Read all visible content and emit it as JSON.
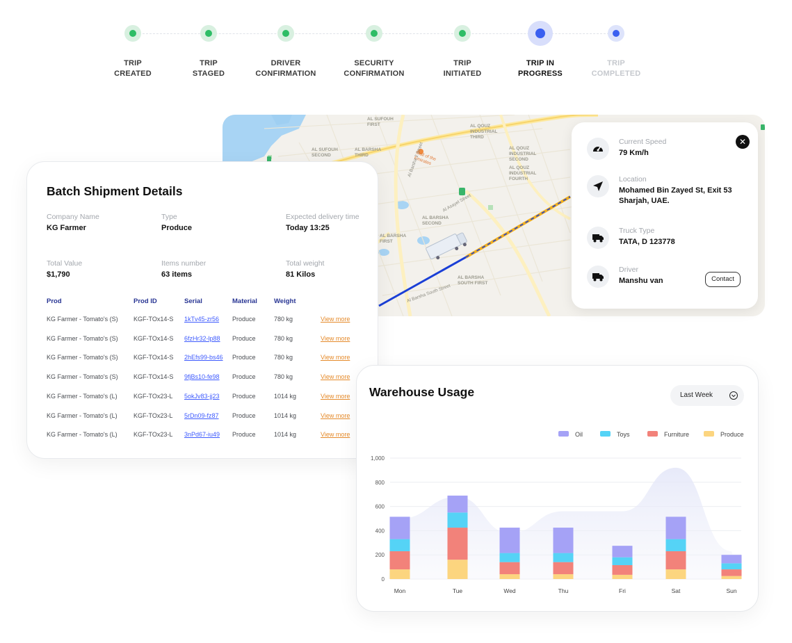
{
  "stepper": {
    "steps": [
      {
        "label": "TRIP\nCREATED",
        "state": "done"
      },
      {
        "label": "TRIP\nSTAGED",
        "state": "done"
      },
      {
        "label": "DRIVER\nCONFIRMATION",
        "state": "done"
      },
      {
        "label": "SECURITY\nCONFIRMATION",
        "state": "done"
      },
      {
        "label": "TRIP\nINITIATED",
        "state": "done"
      },
      {
        "label": "TRIP IN\nPROGRESS",
        "state": "active"
      },
      {
        "label": "TRIP\nCOMPLETED",
        "state": "future"
      }
    ]
  },
  "map": {
    "labels": [
      "AL SUFOUH\nFIRST",
      "AL SUFOUH\nSECOND",
      "AL QOUZ\nINDUSTRIAL\nTHIRD",
      "AL QOUZ\nINDUSTRIAL\nSECOND",
      "AL QOUZ\nINDUSTRIAL\nFOURTH",
      "AL BARSHA\nTHIRD",
      "AL BARSHA\nSECOND",
      "AL BARSHA\nFIRST",
      "AL BARSHA\nSOUTH FIRST",
      "Mall of the\nEmirates",
      "Al Barsha 2 Street",
      "Al Asayel Street",
      "Al Barsha South Street"
    ]
  },
  "trip_info": {
    "speed_label": "Current Speed",
    "speed_value": "79 Km/h",
    "location_label": "Location",
    "location_value": "Mohamed Bin Zayed St, Exit 53\nSharjah, UAE.",
    "truck_label": "Truck Type",
    "truck_value": "TATA, D 123778",
    "driver_label": "Driver",
    "driver_value": "Manshu van",
    "contact_label": "Contact",
    "close_glyph": "✕"
  },
  "batch": {
    "title": "Batch Shipment Details",
    "fields": [
      {
        "label": "Company Name",
        "value": "KG Farmer"
      },
      {
        "label": "Type",
        "value": "Produce"
      },
      {
        "label": "Expected delivery time",
        "value": "Today 13:25"
      },
      {
        "label": "Total Value",
        "value": "$1,790"
      },
      {
        "label": "Items number",
        "value": "63 items"
      },
      {
        "label": "Total weight",
        "value": "81 Kilos"
      }
    ],
    "columns": [
      "Prod",
      "Prod ID",
      "Serial",
      "Material",
      "Weight"
    ],
    "rows": [
      {
        "prod": "KG Farmer - Tomato's (S)",
        "id": "KGF-TOx14-S",
        "serial": "1kTv45-zr56",
        "material": "Produce",
        "weight": "780 kg",
        "action": "View more"
      },
      {
        "prod": "KG Farmer - Tomato's (S)",
        "id": "KGF-TOx14-S",
        "serial": "6fzHr32-lp88",
        "material": "Produce",
        "weight": "780 kg",
        "action": "View more"
      },
      {
        "prod": "KG Farmer - Tomato's (S)",
        "id": "KGF-TOx14-S",
        "serial": "2hEfs99-bs46",
        "material": "Produce",
        "weight": "780 kg",
        "action": "View more"
      },
      {
        "prod": "KG Farmer - Tomato's (S)",
        "id": "KGF-TOx14-S",
        "serial": "9fjBs10-fe98",
        "material": "Produce",
        "weight": "780 kg",
        "action": "View more"
      },
      {
        "prod": "KG Farmer - Tomato's (L)",
        "id": "KGF-TOx23-L",
        "serial": "5okJv83-jj23",
        "material": "Produce",
        "weight": "1014 kg",
        "action": "View more"
      },
      {
        "prod": "KG Farmer - Tomato's (L)",
        "id": "KGF-TOx23-L",
        "serial": "5rDn09-fz87",
        "material": "Produce",
        "weight": "1014 kg",
        "action": "View more"
      },
      {
        "prod": "KG Farmer - Tomato's (L)",
        "id": "KGF-TOx23-L",
        "serial": "3nPd67-iu49",
        "material": "Produce",
        "weight": "1014 kg",
        "action": "View more"
      }
    ]
  },
  "warehouse": {
    "title": "Warehouse Usage",
    "range_selected": "Last Week"
  },
  "chart_data": {
    "type": "bar",
    "stacked": true,
    "categories": [
      "Mon",
      "Tue",
      "Wed",
      "Thu",
      "Fri",
      "Sat",
      "Sun"
    ],
    "series": [
      {
        "name": "Produce",
        "color": "#fcd57f",
        "values": [
          80,
          160,
          40,
          40,
          35,
          80,
          25
        ]
      },
      {
        "name": "Furniture",
        "color": "#f2827a",
        "values": [
          150,
          265,
          100,
          100,
          80,
          150,
          55
        ]
      },
      {
        "name": "Toys",
        "color": "#55d3f6",
        "values": [
          100,
          125,
          75,
          75,
          65,
          100,
          50
        ]
      },
      {
        "name": "Oil",
        "color": "#a5a2f6",
        "values": [
          185,
          140,
          210,
          210,
          95,
          185,
          70
        ]
      }
    ],
    "background_area": [
      500,
      680,
      380,
      560,
      560,
      920,
      230
    ],
    "yticks": [
      0,
      200,
      400,
      600,
      800,
      1000
    ],
    "ytick_labels": [
      "0",
      "200",
      "400",
      "600",
      "800",
      "1,000"
    ],
    "ylim": [
      0,
      1000
    ],
    "legend_order": [
      "Oil",
      "Toys",
      "Furniture",
      "Produce"
    ],
    "legend_position": "top-right",
    "grid": true
  }
}
